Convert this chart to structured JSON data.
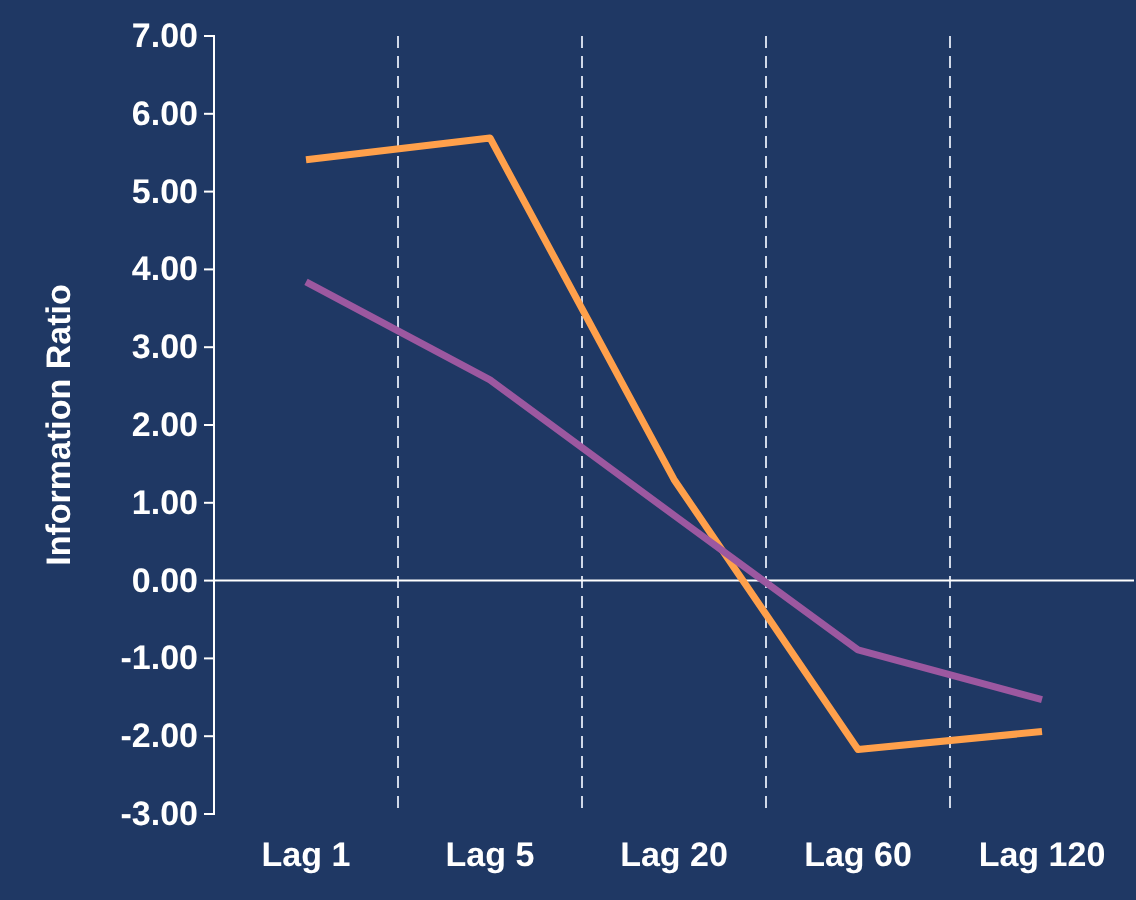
{
  "chart_data": {
    "type": "line",
    "ylabel": "Information Ratio",
    "categories": [
      "Lag 1",
      "Lag 5",
      "Lag 20",
      "Lag 60",
      "Lag 120"
    ],
    "series": [
      {
        "color": "#ffa04b",
        "values": [
          5.41,
          5.69,
          1.3,
          -2.17,
          -1.94
        ]
      },
      {
        "color": "#9c58a0",
        "values": [
          3.84,
          2.58,
          0.84,
          -0.89,
          -1.53
        ]
      }
    ],
    "ylim": [
      -3,
      7
    ],
    "yticks": [
      {
        "value": -3,
        "label": "-3.00"
      },
      {
        "value": -2,
        "label": "-2.00"
      },
      {
        "value": -1,
        "label": "-1.00"
      },
      {
        "value": 0,
        "label": "0.00"
      },
      {
        "value": 1,
        "label": "1.00"
      },
      {
        "value": 2,
        "label": "2.00"
      },
      {
        "value": 3,
        "label": "3.00"
      },
      {
        "value": 4,
        "label": "4.00"
      },
      {
        "value": 5,
        "label": "5.00"
      },
      {
        "value": 6,
        "label": "6.00"
      },
      {
        "value": 7,
        "label": "7.00"
      }
    ],
    "grid": "x",
    "ref_lines": [
      {
        "axis": "y",
        "value": 0,
        "color": "#ffffff"
      }
    ],
    "line_style": "solid",
    "marker": "none"
  }
}
